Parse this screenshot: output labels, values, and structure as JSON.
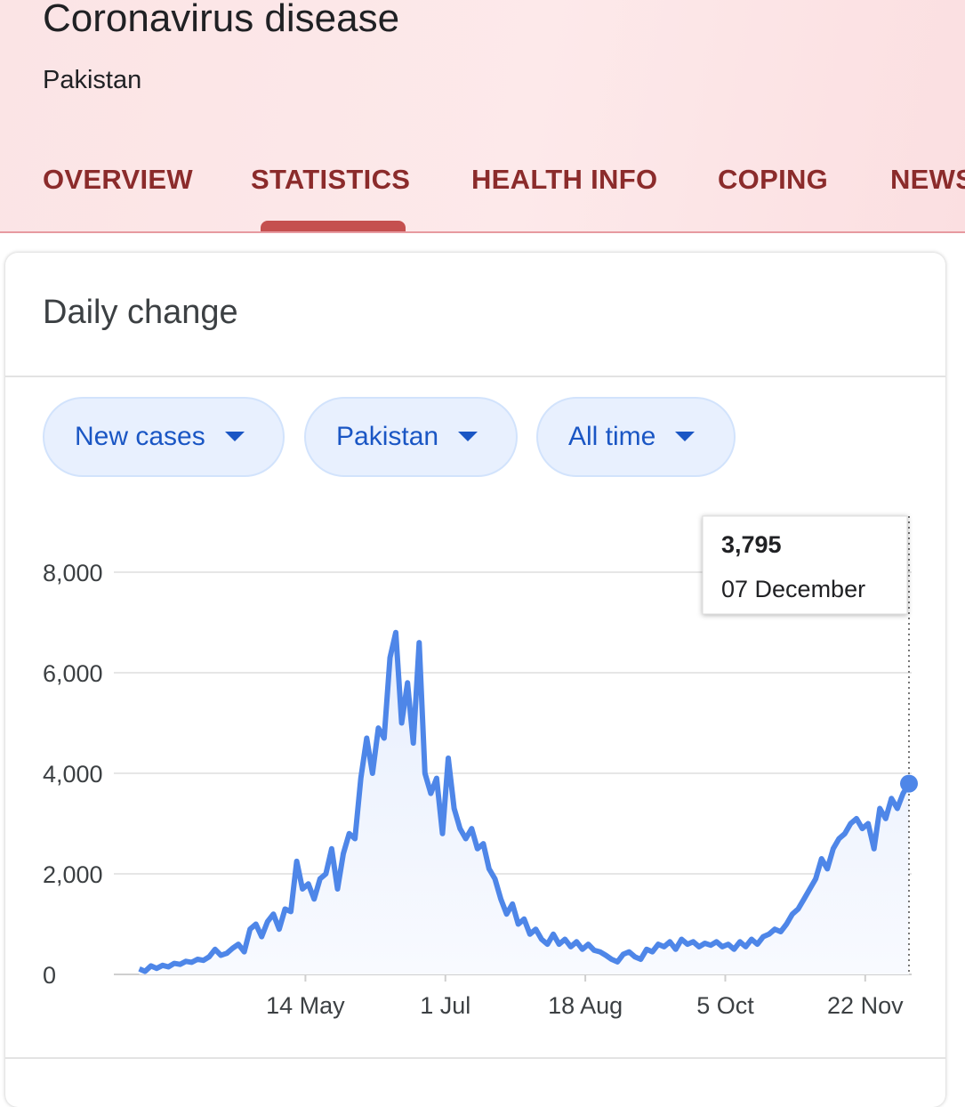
{
  "header": {
    "title": "Coronavirus disease",
    "subtitle": "Pakistan",
    "tabs": [
      "OVERVIEW",
      "STATISTICS",
      "HEALTH INFO",
      "COPING",
      "NEWS"
    ]
  },
  "card": {
    "title": "Daily change",
    "filters": [
      "New cases",
      "Pakistan",
      "All time"
    ]
  },
  "chart_data": {
    "type": "line",
    "color": "#4e86e8",
    "x": [
      78,
      80,
      82,
      84,
      86,
      88,
      90,
      92,
      94,
      96,
      98,
      100,
      102,
      104,
      106,
      108,
      110,
      112,
      114,
      116,
      118,
      120,
      122,
      124,
      126,
      128,
      130,
      132,
      134,
      136,
      138,
      140,
      142,
      144,
      146,
      148,
      150,
      152,
      154,
      156,
      158,
      160,
      162,
      164,
      166,
      168,
      170,
      172,
      174,
      176,
      178,
      180,
      182,
      184,
      186,
      188,
      190,
      192,
      194,
      196,
      198,
      200,
      202,
      204,
      206,
      208,
      210,
      212,
      214,
      216,
      218,
      220,
      222,
      224,
      226,
      228,
      230,
      232,
      234,
      236,
      238,
      240,
      242,
      244,
      246,
      248,
      250,
      252,
      254,
      256,
      258,
      260,
      262,
      264,
      266,
      268,
      270,
      272,
      274,
      276,
      278,
      280,
      282,
      284,
      286,
      288,
      290,
      292,
      294,
      296,
      298,
      300,
      302,
      304,
      306,
      308,
      310,
      312,
      314,
      316,
      318,
      320,
      322,
      324,
      326,
      328,
      330,
      332,
      334,
      336,
      338,
      340,
      342
    ],
    "values": [
      110,
      60,
      170,
      120,
      180,
      150,
      220,
      200,
      260,
      240,
      300,
      280,
      350,
      500,
      380,
      420,
      520,
      600,
      450,
      900,
      1000,
      750,
      1050,
      1200,
      900,
      1300,
      1250,
      2250,
      1700,
      1800,
      1500,
      1900,
      2000,
      2500,
      1700,
      2400,
      2800,
      2700,
      3900,
      4700,
      4000,
      4900,
      4700,
      6300,
      6800,
      5000,
      5800,
      4600,
      6600,
      4000,
      3600,
      3900,
      2800,
      4300,
      3300,
      2900,
      2700,
      2900,
      2500,
      2600,
      2100,
      1900,
      1500,
      1200,
      1400,
      1000,
      1100,
      800,
      900,
      700,
      600,
      800,
      600,
      700,
      550,
      650,
      500,
      600,
      480,
      450,
      380,
      300,
      250,
      400,
      450,
      350,
      300,
      500,
      450,
      600,
      550,
      650,
      500,
      700,
      600,
      650,
      550,
      620,
      580,
      650,
      550,
      600,
      500,
      650,
      550,
      700,
      600,
      750,
      800,
      900,
      850,
      1000,
      1200,
      1300,
      1500,
      1700,
      1900,
      2300,
      2100,
      2500,
      2700,
      2800,
      3000,
      3100,
      2900,
      3000,
      2500,
      3300,
      3100,
      3500,
      3300,
      3600,
      3795
    ],
    "xlim": [
      76,
      342
    ],
    "xticks": [
      {
        "value": 135,
        "label": "14 May"
      },
      {
        "value": 183,
        "label": "1 Jul"
      },
      {
        "value": 231,
        "label": "18 Aug"
      },
      {
        "value": 279,
        "label": "5 Oct"
      },
      {
        "value": 327,
        "label": "22 Nov"
      }
    ],
    "ylim": [
      0,
      8000
    ],
    "yticks": [
      0,
      {
        "value": 2000,
        "label": "2,000"
      },
      {
        "value": 4000,
        "label": "4,000"
      },
      {
        "value": 6000,
        "label": "6,000"
      },
      {
        "value": 8000,
        "label": "8,000"
      }
    ],
    "grid": true,
    "tooltip": {
      "value": "3,795",
      "date": "07 December"
    }
  }
}
